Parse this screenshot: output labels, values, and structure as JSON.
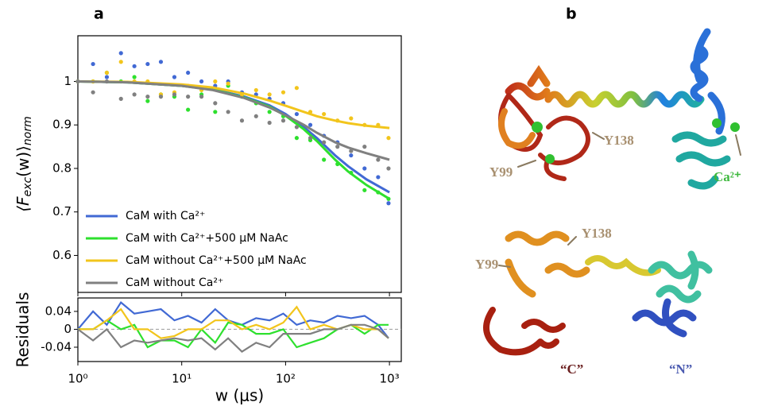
{
  "panel_labels": [
    "a",
    "b"
  ],
  "chart_data": [
    {
      "type": "scatter",
      "ylabel": [
        "⟨F",
        "exc",
        "(w)⟩",
        "norm"
      ],
      "xscale": "log",
      "xlim": [
        1,
        1300
      ],
      "ylim": [
        0.515,
        1.105
      ],
      "xticks": [
        {
          "value": 1,
          "label": "10⁰"
        },
        {
          "value": 10,
          "label": "10¹"
        },
        {
          "value": 100,
          "label": "10²"
        },
        {
          "value": 1000,
          "label": "10³"
        }
      ],
      "yticks": [
        0.6,
        0.7,
        0.8,
        0.9,
        1
      ],
      "legend": "lower left",
      "x": [
        1,
        1.4,
        1.9,
        2.6,
        3.5,
        4.7,
        6.3,
        8.5,
        11.5,
        15.5,
        21,
        28,
        38,
        52,
        70,
        95,
        128,
        173,
        234,
        316,
        427,
        576,
        778,
        980
      ],
      "fit_x": [
        1,
        3,
        10,
        20,
        40,
        70,
        100,
        150,
        200,
        300,
        400,
        600,
        1000
      ],
      "series": [
        {
          "name": "CaM with Ca²⁺",
          "color": "#4169d4",
          "values": [
            1.0,
            1.04,
            1.01,
            1.065,
            1.035,
            1.04,
            1.045,
            1.01,
            1.02,
            1.0,
            0.99,
            1.0,
            0.975,
            0.97,
            0.96,
            0.95,
            0.925,
            0.9,
            0.875,
            0.86,
            0.83,
            0.8,
            0.78,
            0.72
          ],
          "fit": [
            1,
            0.998,
            0.99,
            0.982,
            0.965,
            0.945,
            0.925,
            0.895,
            0.87,
            0.83,
            0.805,
            0.775,
            0.745
          ]
        },
        {
          "name": "CaM with Ca²⁺+500 μM NaAc",
          "color": "#2ee02e",
          "values": [
            1.0,
            1.0,
            1.02,
            1.0,
            1.01,
            0.955,
            0.97,
            0.965,
            0.935,
            0.97,
            0.93,
            0.99,
            0.965,
            0.95,
            0.93,
            0.92,
            0.87,
            0.865,
            0.82,
            0.81,
            0.79,
            0.75,
            0.745,
            0.73
          ],
          "fit": [
            1,
            0.998,
            0.99,
            0.981,
            0.963,
            0.942,
            0.921,
            0.89,
            0.863,
            0.82,
            0.793,
            0.762,
            0.73
          ]
        },
        {
          "name": "CaM without Ca²⁺+500 μM NaAc",
          "color": "#f2c51c",
          "values": [
            1.0,
            1.0,
            1.02,
            1.045,
            1.0,
            1.0,
            0.97,
            0.975,
            0.99,
            0.98,
            1.0,
            0.995,
            0.97,
            0.98,
            0.97,
            0.975,
            0.985,
            0.93,
            0.925,
            0.91,
            0.915,
            0.9,
            0.9,
            0.87
          ],
          "fit": [
            1,
            0.999,
            0.993,
            0.986,
            0.972,
            0.956,
            0.944,
            0.93,
            0.92,
            0.91,
            0.904,
            0.898,
            0.893
          ]
        },
        {
          "name": "CaM without Ca²⁺",
          "color": "#808080",
          "values": [
            1.0,
            0.975,
            1.0,
            0.96,
            0.97,
            0.965,
            0.965,
            0.97,
            0.965,
            0.965,
            0.95,
            0.93,
            0.91,
            0.92,
            0.905,
            0.91,
            0.895,
            0.87,
            0.86,
            0.85,
            0.84,
            0.85,
            0.82,
            0.8
          ],
          "fit": [
            1,
            0.998,
            0.99,
            0.98,
            0.962,
            0.94,
            0.922,
            0.9,
            0.882,
            0.86,
            0.848,
            0.835,
            0.82
          ]
        }
      ]
    },
    {
      "type": "line",
      "ylabel": "Residuals",
      "xlabel": "w (μs)",
      "xscale": "log",
      "xlim": [
        1,
        1300
      ],
      "ylim": [
        -0.072,
        0.07
      ],
      "xticks": [
        {
          "value": 1,
          "label": "10⁰"
        },
        {
          "value": 10,
          "label": "10¹"
        },
        {
          "value": 100,
          "label": "10²"
        },
        {
          "value": 1000,
          "label": "10³"
        }
      ],
      "yticks": [
        -0.04,
        0,
        0.04
      ],
      "x": [
        1,
        1.4,
        1.9,
        2.6,
        3.5,
        4.7,
        6.3,
        8.5,
        11.5,
        15.5,
        21,
        28,
        38,
        52,
        70,
        95,
        128,
        173,
        234,
        316,
        427,
        576,
        778,
        980
      ],
      "series": [
        {
          "color": "#4169d4",
          "values": [
            0,
            0.04,
            0.01,
            0.06,
            0.035,
            0.04,
            0.045,
            0.02,
            0.03,
            0.015,
            0.045,
            0.02,
            0.01,
            0.025,
            0.02,
            0.035,
            0.01,
            0.02,
            0.015,
            0.03,
            0.025,
            0.03,
            0.01,
            -0.02
          ]
        },
        {
          "color": "#2ee02e",
          "values": [
            0,
            0,
            0.02,
            0,
            0.01,
            -0.04,
            -0.025,
            -0.025,
            -0.04,
            0,
            -0.03,
            0.015,
            0.01,
            -0.01,
            -0.01,
            0,
            -0.04,
            -0.03,
            -0.02,
            0,
            0.01,
            -0.01,
            0.01,
            0.01
          ]
        },
        {
          "color": "#f2c51c",
          "values": [
            0,
            0,
            0.02,
            0.045,
            0,
            0,
            -0.02,
            -0.015,
            0,
            0,
            0.02,
            0.02,
            0,
            0.01,
            0,
            0.015,
            0.05,
            0,
            0.01,
            0,
            0.01,
            0,
            0,
            -0.02
          ]
        },
        {
          "color": "#808080",
          "values": [
            0,
            -0.025,
            0,
            -0.04,
            -0.025,
            -0.03,
            -0.025,
            -0.02,
            -0.025,
            -0.02,
            -0.045,
            -0.02,
            -0.05,
            -0.03,
            -0.04,
            -0.01,
            -0.01,
            -0.01,
            0,
            0,
            0.01,
            0.01,
            0,
            -0.02
          ]
        }
      ]
    }
  ],
  "structure_labels": {
    "top_y138": "Y138",
    "top_y99": "Y99",
    "top_ca": "Ca²⁺",
    "bottom_y138": "Y138",
    "bottom_y99": "Y99",
    "bottom_c": "“C”",
    "bottom_n": "“N”"
  }
}
